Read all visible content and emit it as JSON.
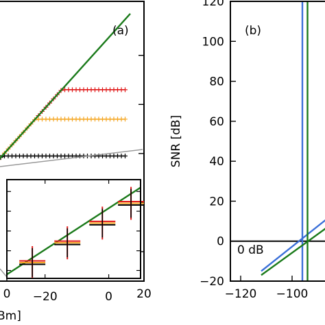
{
  "chart_data": [
    {
      "type": "line",
      "panel_label": "(a)",
      "xlabel": "Bm]",
      "ylabel": "",
      "xlim": [
        -2,
        20
      ],
      "x_ticks": [
        0,
        20
      ],
      "x_tick_labels": [
        "0",
        "20"
      ],
      "y_ticks": [
        20,
        40,
        60,
        80,
        100
      ],
      "ylim": [
        8,
        122
      ],
      "reference": {
        "name": "",
        "color": "#1a7a1a",
        "x": [
          -2,
          18
        ],
        "y": [
          55,
          117
        ]
      },
      "series": [
        {
          "color": "#e01818",
          "marker": "plus",
          "saturation_level": 86,
          "x_start": 10,
          "x_end": 17.5
        },
        {
          "color": "#f5a623",
          "marker": "plus",
          "saturation_level": 74,
          "x_start": 6,
          "x_end": 17.5
        },
        {
          "color": "#000000",
          "marker": "plus",
          "saturation_level": 59,
          "x_start": -2,
          "x_end": 17.5
        }
      ]
    },
    {
      "type": "scatter",
      "panel_label": "",
      "xlabel": "",
      "ylabel": "",
      "xlim": [
        -32,
        10
      ],
      "ylim": [
        -10,
        15
      ],
      "x_ticks": [
        -20,
        0
      ],
      "x_tick_labels": [
        "−20",
        "0"
      ],
      "reference": {
        "color": "#1a7a1a",
        "x": [
          -32,
          10
        ],
        "y": [
          -9,
          13
        ]
      },
      "points": [
        {
          "x": -24,
          "y": -6
        },
        {
          "x": -13,
          "y": -1
        },
        {
          "x": -2,
          "y": 4
        },
        {
          "x": 7,
          "y": 9
        }
      ],
      "marker_colors": [
        "#e01818",
        "#f5a623",
        "#000000"
      ]
    },
    {
      "type": "line",
      "panel_label": "(b)",
      "xlabel": "",
      "ylabel": "SNR [dB]",
      "xlim": [
        -130,
        -68
      ],
      "ylim": [
        -20,
        120
      ],
      "x_ticks": [
        -120,
        -100
      ],
      "x_tick_labels": [
        "−120",
        "−100"
      ],
      "y_ticks": [
        -20,
        0,
        20,
        40,
        60,
        80,
        100,
        120
      ],
      "y_tick_labels": [
        "−20",
        "0",
        "20",
        "40",
        "60",
        "80",
        "100",
        "120"
      ],
      "hline": {
        "y": 0,
        "label": "0 dB",
        "color": "#000000"
      },
      "series": [
        {
          "color": "#3a6fd8",
          "vline_x": -96,
          "x": [
            -112,
            -68
          ],
          "y": [
            -15,
            30
          ]
        },
        {
          "color": "#1a7a1a",
          "vline_x": -94,
          "x": [
            -112,
            -68
          ],
          "y": [
            -17,
            24
          ]
        }
      ]
    }
  ]
}
